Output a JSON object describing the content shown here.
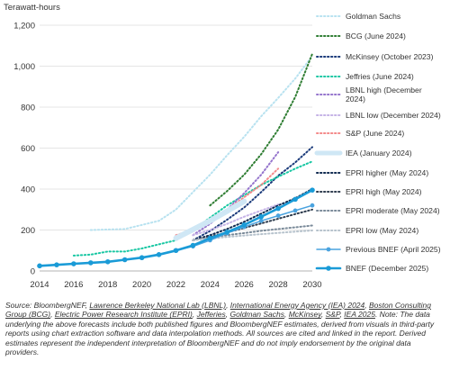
{
  "chart_data": {
    "type": "line",
    "ylabel": "Terawatt-hours",
    "xlim": [
      2014,
      2030
    ],
    "ylim": [
      0,
      1200
    ],
    "x_ticks": [
      2014,
      2016,
      2018,
      2020,
      2022,
      2024,
      2026,
      2028,
      2030
    ],
    "y_ticks": [
      0,
      200,
      400,
      600,
      800,
      1000,
      1200
    ],
    "y_tick_labels": [
      "0",
      "200",
      "400",
      "600",
      "800",
      "1,000",
      "1,200"
    ],
    "grid": "horizontal",
    "legend_position": "right",
    "series": [
      {
        "name": "Goldman Sachs",
        "color": "#b8e2f0",
        "style": "dotted",
        "points": [
          [
            2017,
            200
          ],
          [
            2019,
            205
          ],
          [
            2021,
            245
          ],
          [
            2022,
            300
          ],
          [
            2023,
            385
          ],
          [
            2024,
            470
          ],
          [
            2025,
            565
          ],
          [
            2026,
            655
          ],
          [
            2027,
            755
          ],
          [
            2028,
            845
          ],
          [
            2029,
            940
          ],
          [
            2030,
            1050
          ]
        ]
      },
      {
        "name": "BCG (June 2024)",
        "color": "#2e7d32",
        "style": "dotted",
        "points": [
          [
            2024,
            320
          ],
          [
            2025,
            390
          ],
          [
            2026,
            470
          ],
          [
            2027,
            570
          ],
          [
            2028,
            690
          ],
          [
            2029,
            850
          ],
          [
            2030,
            1060
          ]
        ]
      },
      {
        "name": "McKinsey (October 2023)",
        "color": "#1a3a7a",
        "style": "dotted",
        "points": [
          [
            2023,
            150
          ],
          [
            2024,
            195
          ],
          [
            2025,
            250
          ],
          [
            2026,
            310
          ],
          [
            2027,
            385
          ],
          [
            2028,
            465
          ],
          [
            2029,
            530
          ],
          [
            2030,
            605
          ]
        ]
      },
      {
        "name": "Jeffries (June 2024)",
        "color": "#19c7a3",
        "style": "dotted",
        "points": [
          [
            2016,
            75
          ],
          [
            2017,
            80
          ],
          [
            2018,
            95
          ],
          [
            2019,
            95
          ],
          [
            2020,
            110
          ],
          [
            2021,
            130
          ],
          [
            2022,
            150
          ],
          [
            2023,
            200
          ],
          [
            2024,
            260
          ],
          [
            2025,
            320
          ],
          [
            2026,
            370
          ],
          [
            2027,
            420
          ],
          [
            2028,
            460
          ],
          [
            2029,
            500
          ],
          [
            2030,
            535
          ]
        ]
      },
      {
        "name": "LBNL high (December 2024)",
        "color": "#9575cd",
        "style": "dotted",
        "points": [
          [
            2023,
            175
          ],
          [
            2024,
            230
          ],
          [
            2025,
            300
          ],
          [
            2026,
            380
          ],
          [
            2027,
            470
          ],
          [
            2028,
            580
          ]
        ]
      },
      {
        "name": "LBNL low (December 2024)",
        "color": "#c5b3e6",
        "style": "dotted",
        "points": [
          [
            2023,
            175
          ],
          [
            2024,
            200
          ],
          [
            2025,
            230
          ],
          [
            2026,
            265
          ],
          [
            2027,
            295
          ],
          [
            2028,
            325
          ]
        ]
      },
      {
        "name": "S&P (June 2024)",
        "color": "#f48a8a",
        "style": "dotted",
        "points": [
          [
            2022,
            175
          ],
          [
            2023,
            200
          ],
          [
            2024,
            245
          ],
          [
            2025,
            300
          ],
          [
            2026,
            360
          ],
          [
            2027,
            420
          ],
          [
            2028,
            500
          ]
        ]
      },
      {
        "name": "IEA (January 2024)",
        "color": "#cfe7f5",
        "style": "solid-thick",
        "points": [
          [
            2022,
            160
          ],
          [
            2024,
            245
          ],
          [
            2026,
            340
          ]
        ]
      },
      {
        "name": "EPRI higher (May 2024)",
        "color": "#0f2a50",
        "style": "dotted",
        "points": [
          [
            2023,
            150
          ],
          [
            2024,
            175
          ],
          [
            2025,
            205
          ],
          [
            2026,
            240
          ],
          [
            2027,
            280
          ],
          [
            2028,
            320
          ],
          [
            2029,
            355
          ],
          [
            2030,
            400
          ]
        ]
      },
      {
        "name": "EPRI high (May 2024)",
        "color": "#2f3d4f",
        "style": "dotted",
        "points": [
          [
            2023,
            150
          ],
          [
            2024,
            168
          ],
          [
            2025,
            188
          ],
          [
            2026,
            210
          ],
          [
            2027,
            232
          ],
          [
            2028,
            255
          ],
          [
            2029,
            278
          ],
          [
            2030,
            300
          ]
        ]
      },
      {
        "name": "EPRI moderate (May 2024)",
        "color": "#7a8a99",
        "style": "dotted",
        "points": [
          [
            2023,
            150
          ],
          [
            2024,
            162
          ],
          [
            2025,
            175
          ],
          [
            2026,
            185
          ],
          [
            2027,
            196
          ],
          [
            2028,
            205
          ],
          [
            2029,
            213
          ],
          [
            2030,
            222
          ]
        ]
      },
      {
        "name": "EPRI low (May 2024)",
        "color": "#b6c2cc",
        "style": "dotted",
        "points": [
          [
            2023,
            150
          ],
          [
            2024,
            158
          ],
          [
            2025,
            166
          ],
          [
            2026,
            173
          ],
          [
            2027,
            180
          ],
          [
            2028,
            186
          ],
          [
            2029,
            192
          ],
          [
            2030,
            198
          ]
        ]
      },
      {
        "name": "Previous BNEF (April 2025)",
        "color": "#4aa3df",
        "style": "solid-marker",
        "points": [
          [
            2014,
            25
          ],
          [
            2015,
            30
          ],
          [
            2016,
            35
          ],
          [
            2017,
            40
          ],
          [
            2018,
            45
          ],
          [
            2019,
            55
          ],
          [
            2020,
            65
          ],
          [
            2021,
            80
          ],
          [
            2022,
            100
          ],
          [
            2023,
            120
          ],
          [
            2024,
            150
          ],
          [
            2025,
            185
          ],
          [
            2026,
            215
          ],
          [
            2027,
            245
          ],
          [
            2028,
            270
          ],
          [
            2029,
            295
          ],
          [
            2030,
            320
          ]
        ]
      },
      {
        "name": "BNEF (December 2025)",
        "color": "#1a9bd7",
        "style": "solid-marker-thick",
        "points": [
          [
            2014,
            25
          ],
          [
            2015,
            30
          ],
          [
            2016,
            35
          ],
          [
            2017,
            40
          ],
          [
            2018,
            45
          ],
          [
            2019,
            55
          ],
          [
            2020,
            65
          ],
          [
            2021,
            80
          ],
          [
            2022,
            100
          ],
          [
            2023,
            125
          ],
          [
            2024,
            160
          ],
          [
            2025,
            190
          ],
          [
            2026,
            225
          ],
          [
            2027,
            265
          ],
          [
            2028,
            305
          ],
          [
            2029,
            350
          ],
          [
            2030,
            395
          ]
        ]
      }
    ]
  },
  "source_note": {
    "prefix": "Source: BloombergNEF, ",
    "links": [
      "Lawrence Berkeley National Lab (LBNL)",
      "International Energy Agency (IEA) 2024",
      "Boston Consulting Group (BCG)",
      "Electric Power Research Institute (EPRI)",
      "Jefferies",
      "Goldman Sachs",
      "McKinsey",
      "S&P",
      "IEA 2025"
    ],
    "separator": ", ",
    "suffix": ". Note: The data underlying the above forecasts include both published figures and BloombergNEF estimates, derived from visuals in third-party reports using chart extraction software and data interpolation methods. All sources are cited and linked in the report. Derived estimates represent the independent interpretation of BloombergNEF and do not imply endorsement by the original data providers."
  }
}
